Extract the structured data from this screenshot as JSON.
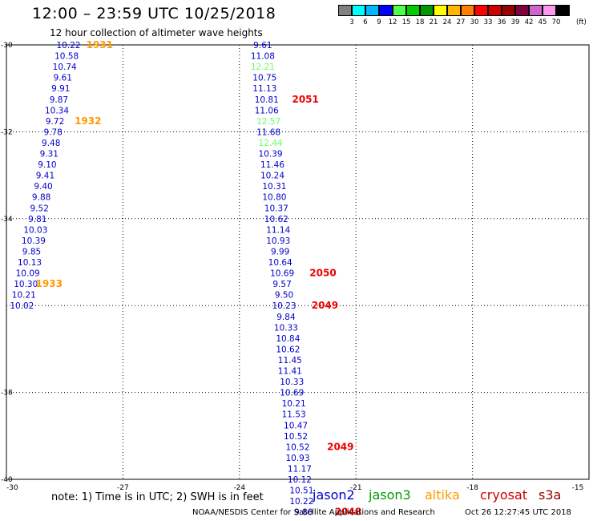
{
  "title": "12:00 – 23:59 UTC 10/25/2018",
  "subtitle": "12 hour collection of altimeter wave heights",
  "colorbar": {
    "colors": [
      "#808080",
      "#00ffff",
      "#00b8ff",
      "#0000ff",
      "#4dff4d",
      "#00cc00",
      "#009900",
      "#ffff00",
      "#ffb700",
      "#ff8000",
      "#ff0000",
      "#cc0000",
      "#990000",
      "#800040",
      "#cc66cc",
      "#ff99ee",
      "#000000"
    ],
    "labels": [
      "3",
      "6",
      "9",
      "12",
      "15",
      "18",
      "21",
      "24",
      "27",
      "30",
      "33",
      "36",
      "39",
      "42",
      "45",
      "70"
    ],
    "unit": "(ft)"
  },
  "note": "note:  1) Time is in UTC;  2) SWH is in feet",
  "legend": [
    {
      "name": "jason2",
      "color": "#0000cc"
    },
    {
      "name": "jason3",
      "color": "#009900"
    },
    {
      "name": "altika",
      "color": "#ff9900"
    },
    {
      "name": "cryosat",
      "color": "#cc0000"
    },
    {
      "name": "s3a",
      "color": "#990000"
    }
  ],
  "footer_left": "NOAA/NESDIS Center for Satellite Applications and Research",
  "footer_right": "Oct 26 12:27:45 UTC 2018",
  "chart_data": {
    "type": "scatter",
    "xlim": [
      -30,
      -15
    ],
    "ylim": [
      -40,
      -30
    ],
    "x_ticks": [
      -30,
      -27,
      -24,
      -21,
      -18,
      -15
    ],
    "x_tick_labels": [
      "-30",
      "-27",
      "-24",
      "-21",
      "-18",
      "-15"
    ],
    "y_ticks": [
      -30,
      -32,
      -34,
      -36,
      -38,
      -40
    ],
    "y_tick_labels": [
      "-30",
      "-32",
      "-34",
      "",
      "-38",
      "-40"
    ],
    "grid": true,
    "series": [
      {
        "satellite": "altika",
        "color": "#0000cc",
        "points": [
          {
            "x": -28.4,
            "y": -30.0,
            "v": "10.22"
          },
          {
            "x": -28.45,
            "y": -30.25,
            "v": "10.58"
          },
          {
            "x": -28.5,
            "y": -30.5,
            "v": "10.74"
          },
          {
            "x": -28.55,
            "y": -30.75,
            "v": "9.61"
          },
          {
            "x": -28.6,
            "y": -31.0,
            "v": "9.91"
          },
          {
            "x": -28.65,
            "y": -31.25,
            "v": "9.87"
          },
          {
            "x": -28.7,
            "y": -31.5,
            "v": "10.34"
          },
          {
            "x": -28.75,
            "y": -31.75,
            "v": "9.72"
          },
          {
            "x": -28.8,
            "y": -32.0,
            "v": "9.78"
          },
          {
            "x": -28.85,
            "y": -32.25,
            "v": "9.48"
          },
          {
            "x": -28.9,
            "y": -32.5,
            "v": "9.31"
          },
          {
            "x": -28.95,
            "y": -32.75,
            "v": "9.10"
          },
          {
            "x": -29.0,
            "y": -33.0,
            "v": "9.41"
          },
          {
            "x": -29.05,
            "y": -33.25,
            "v": "9.40"
          },
          {
            "x": -29.1,
            "y": -33.5,
            "v": "9.88"
          },
          {
            "x": -29.15,
            "y": -33.75,
            "v": "9.52"
          },
          {
            "x": -29.2,
            "y": -34.0,
            "v": "9.81"
          },
          {
            "x": -29.25,
            "y": -34.25,
            "v": "10.03"
          },
          {
            "x": -29.3,
            "y": -34.5,
            "v": "10.39"
          },
          {
            "x": -29.35,
            "y": -34.75,
            "v": "9.85"
          },
          {
            "x": -29.4,
            "y": -35.0,
            "v": "10.13"
          },
          {
            "x": -29.45,
            "y": -35.25,
            "v": "10.09"
          },
          {
            "x": -29.5,
            "y": -35.5,
            "v": "10.30"
          },
          {
            "x": -29.55,
            "y": -35.75,
            "v": "10.21"
          },
          {
            "x": -29.6,
            "y": -36.0,
            "v": "10.02"
          }
        ]
      },
      {
        "satellite": "jason",
        "color": "#0000cc",
        "points": [
          {
            "x": -23.4,
            "y": -30.0,
            "v": "9.61",
            "c": "#0000cc"
          },
          {
            "x": -23.4,
            "y": -30.25,
            "v": "11.08",
            "c": "#0000cc"
          },
          {
            "x": -23.4,
            "y": -30.5,
            "v": "12.21",
            "c": "#66ff66"
          },
          {
            "x": -23.35,
            "y": -30.75,
            "v": "10.75",
            "c": "#0000cc"
          },
          {
            "x": -23.35,
            "y": -31.0,
            "v": "11.13",
            "c": "#0000cc"
          },
          {
            "x": -23.3,
            "y": -31.25,
            "v": "10.81",
            "c": "#0000cc"
          },
          {
            "x": -23.3,
            "y": -31.5,
            "v": "11.06",
            "c": "#0000cc"
          },
          {
            "x": -23.25,
            "y": -31.75,
            "v": "12.57",
            "c": "#66ff66"
          },
          {
            "x": -23.25,
            "y": -32.0,
            "v": "11.68",
            "c": "#0000cc"
          },
          {
            "x": -23.2,
            "y": -32.25,
            "v": "12.44",
            "c": "#66ff66"
          },
          {
            "x": -23.2,
            "y": -32.5,
            "v": "10.39",
            "c": "#0000cc"
          },
          {
            "x": -23.15,
            "y": -32.75,
            "v": "11.46",
            "c": "#0000cc"
          },
          {
            "x": -23.15,
            "y": -33.0,
            "v": "10.24",
            "c": "#0000cc"
          },
          {
            "x": -23.1,
            "y": -33.25,
            "v": "10.31",
            "c": "#0000cc"
          },
          {
            "x": -23.1,
            "y": -33.5,
            "v": "10.80",
            "c": "#0000cc"
          },
          {
            "x": -23.05,
            "y": -33.75,
            "v": "10.37",
            "c": "#0000cc"
          },
          {
            "x": -23.05,
            "y": -34.0,
            "v": "10.62",
            "c": "#0000cc"
          },
          {
            "x": -23.0,
            "y": -34.25,
            "v": "11.14",
            "c": "#0000cc"
          },
          {
            "x": -23.0,
            "y": -34.5,
            "v": "10.93",
            "c": "#0000cc"
          },
          {
            "x": -22.95,
            "y": -34.75,
            "v": "9.99",
            "c": "#0000cc"
          },
          {
            "x": -22.95,
            "y": -35.0,
            "v": "10.64",
            "c": "#0000cc"
          },
          {
            "x": -22.9,
            "y": -35.25,
            "v": "10.69",
            "c": "#0000cc"
          },
          {
            "x": -22.9,
            "y": -35.5,
            "v": "9.57",
            "c": "#0000cc"
          },
          {
            "x": -22.85,
            "y": -35.75,
            "v": "9.50",
            "c": "#0000cc"
          },
          {
            "x": -22.85,
            "y": -36.0,
            "v": "10.23",
            "c": "#0000cc"
          },
          {
            "x": -22.8,
            "y": -36.25,
            "v": "9.84",
            "c": "#0000cc"
          },
          {
            "x": -22.8,
            "y": -36.5,
            "v": "10.33",
            "c": "#0000cc"
          },
          {
            "x": -22.75,
            "y": -36.75,
            "v": "10.84",
            "c": "#0000cc"
          },
          {
            "x": -22.75,
            "y": -37.0,
            "v": "10.62",
            "c": "#0000cc"
          },
          {
            "x": -22.7,
            "y": -37.25,
            "v": "11.45",
            "c": "#0000cc"
          },
          {
            "x": -22.7,
            "y": -37.5,
            "v": "11.41",
            "c": "#0000cc"
          },
          {
            "x": -22.65,
            "y": -37.75,
            "v": "10.33",
            "c": "#0000cc"
          },
          {
            "x": -22.65,
            "y": -38.0,
            "v": "10.69",
            "c": "#0000cc"
          },
          {
            "x": -22.6,
            "y": -38.25,
            "v": "10.21",
            "c": "#0000cc"
          },
          {
            "x": -22.6,
            "y": -38.5,
            "v": "11.53",
            "c": "#0000cc"
          },
          {
            "x": -22.55,
            "y": -38.75,
            "v": "10.47",
            "c": "#0000cc"
          },
          {
            "x": -22.55,
            "y": -39.0,
            "v": "10.52",
            "c": "#0000cc"
          },
          {
            "x": -22.5,
            "y": -39.25,
            "v": "10.52",
            "c": "#0000cc"
          },
          {
            "x": -22.5,
            "y": -39.5,
            "v": "10.93",
            "c": "#0000cc"
          },
          {
            "x": -22.45,
            "y": -39.75,
            "v": "11.17",
            "c": "#0000cc"
          },
          {
            "x": -22.45,
            "y": -40.0,
            "v": "10.12",
            "c": "#0000cc"
          },
          {
            "x": -22.4,
            "y": -40.25,
            "v": "10.51",
            "c": "#0000cc"
          },
          {
            "x": -22.4,
            "y": -40.5,
            "v": "10.22",
            "c": "#0000cc"
          },
          {
            "x": -22.35,
            "y": -40.75,
            "v": "9.80",
            "c": "#0000cc"
          }
        ]
      }
    ],
    "time_labels": [
      {
        "x": -27.6,
        "y": -30.0,
        "t": "1931",
        "c": "#ff9900"
      },
      {
        "x": -27.9,
        "y": -31.75,
        "t": "1932",
        "c": "#ff9900"
      },
      {
        "x": -28.9,
        "y": -35.5,
        "t": "1933",
        "c": "#ff9900"
      },
      {
        "x": -22.3,
        "y": -31.25,
        "t": "2051",
        "c": "#ee0000"
      },
      {
        "x": -21.85,
        "y": -35.25,
        "t": "2050",
        "c": "#ee0000"
      },
      {
        "x": -21.8,
        "y": -36.0,
        "t": "2049",
        "c": "#ee0000"
      },
      {
        "x": -21.4,
        "y": -39.25,
        "t": "2049",
        "c": "#ee0000"
      },
      {
        "x": -21.2,
        "y": -40.75,
        "t": "2048",
        "c": "#ee0000"
      }
    ]
  }
}
